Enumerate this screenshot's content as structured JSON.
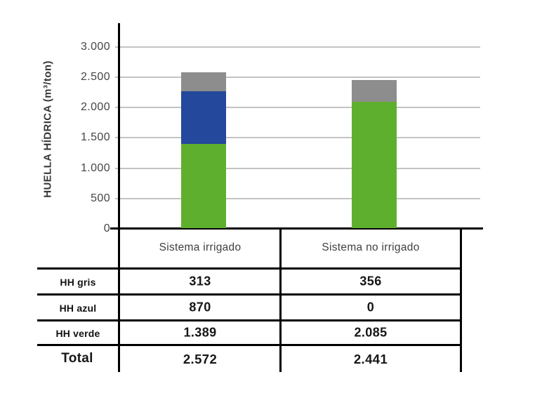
{
  "chart_data": {
    "type": "bar",
    "stacked": true,
    "title": "",
    "ylabel": "HUELLA HÍDRICA (m³/ton)",
    "categories": [
      "Sistema irrigado",
      "Sistema no irrigado"
    ],
    "series": [
      {
        "key": "hh-verde",
        "name": "HH verde",
        "color": "#5FAF2F",
        "values": [
          1389,
          2085
        ]
      },
      {
        "key": "hh-azul",
        "name": "HH azul",
        "color": "#24489B",
        "values": [
          870,
          0
        ]
      },
      {
        "key": "hh-gris",
        "name": "HH gris",
        "color": "#8D8D8D",
        "values": [
          313,
          356
        ]
      }
    ],
    "totals": [
      2572,
      2441
    ],
    "ylim": [
      0,
      3000
    ],
    "ytick_interval": 500,
    "yticks": [
      {
        "value": 3000,
        "label": "3.000"
      },
      {
        "value": 2500,
        "label": "2.500"
      },
      {
        "value": 2000,
        "label": "2.000"
      },
      {
        "value": 1500,
        "label": "1.500"
      },
      {
        "value": 1000,
        "label": "1.000"
      },
      {
        "value": 500,
        "label": "500"
      },
      {
        "value": 0,
        "label": "0"
      }
    ],
    "grid": true,
    "legend_position": "none"
  },
  "table": {
    "column_headers": [
      "Sistema irrigado",
      "Sistema no irrigado"
    ],
    "rows": [
      {
        "label": "HH gris",
        "values": [
          "313",
          "356"
        ]
      },
      {
        "label": "HH azul",
        "values": [
          "870",
          "0"
        ]
      },
      {
        "label": "HH verde",
        "values": [
          "1.389",
          "2.085"
        ]
      },
      {
        "label": "Total",
        "values": [
          "2.572",
          "2.441"
        ]
      }
    ]
  },
  "colors": {
    "hh_verde": "#5FAF2F",
    "hh_azul": "#24489B",
    "hh_gris": "#8D8D8D",
    "gridline": "#C3C3C3",
    "axis": "#000000",
    "text_dark": "#161616",
    "text_gray": "#3F3F3F",
    "background": "#FFFFFF"
  }
}
